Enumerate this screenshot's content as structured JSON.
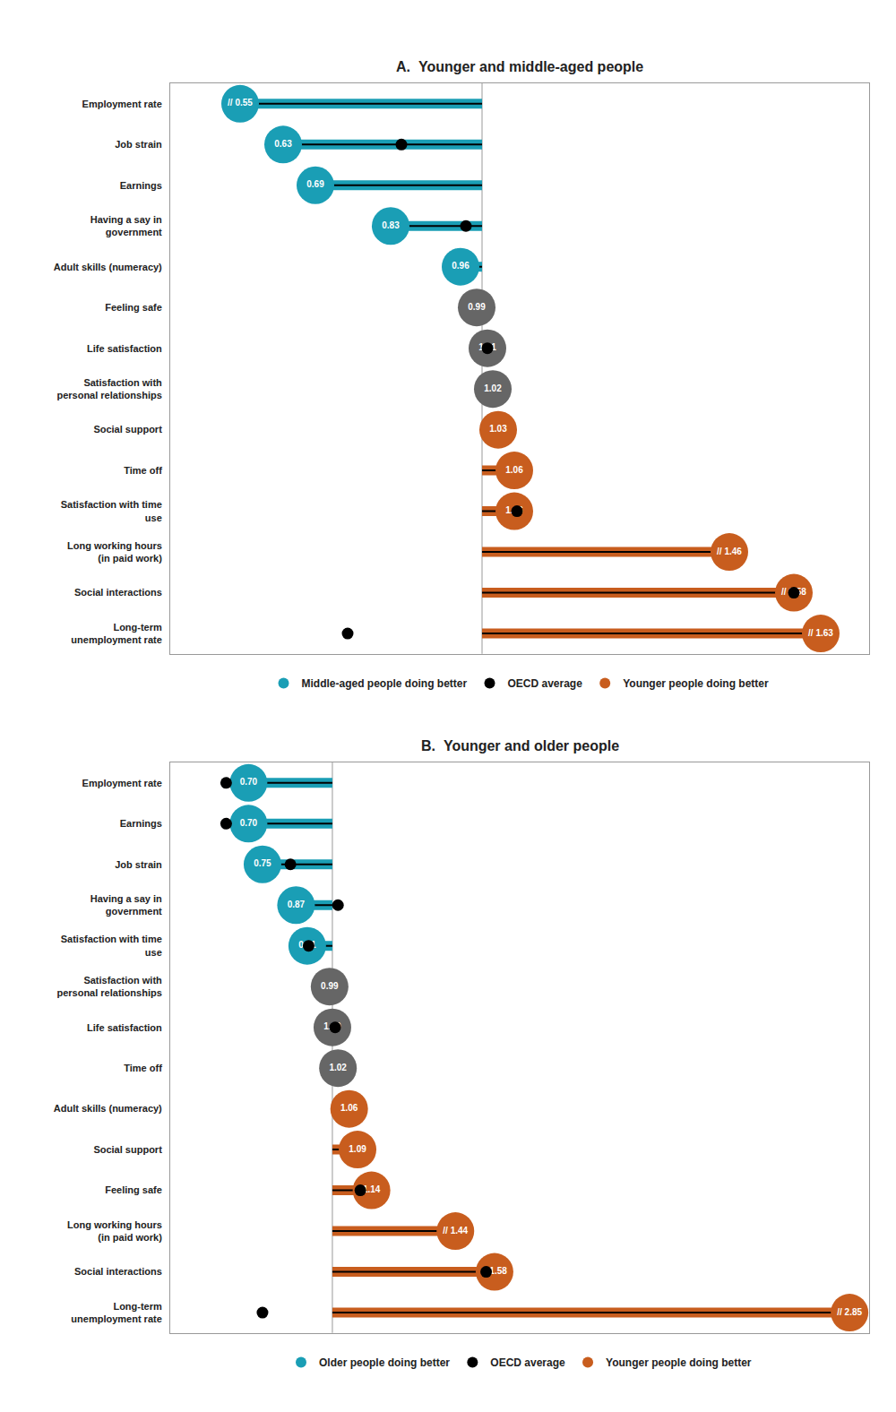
{
  "chart_data": [
    {
      "type": "lollipop",
      "title": "A.  Younger and middle-aged people",
      "orientation": "horizontal",
      "categories": [
        "Employment rate",
        "Job strain",
        "Earnings",
        "Having a say in\ngovernment",
        "Adult skills (numeracy)",
        "Feeling safe",
        "Life satisfaction",
        "Satisfaction with\npersonal relationships",
        "Social support",
        "Time off",
        "Satisfaction with time\nuse",
        "Long working hours\n(in paid work)",
        "Social interactions",
        "Long-term\nunemployment rate"
      ],
      "baseline": 1.0,
      "xlim": [
        0.42,
        1.72
      ],
      "tick_labels": "y",
      "grid": false,
      "data_labels": true,
      "legend": "bottom",
      "series": [
        {
          "name": "Middle-aged people doing better",
          "type": "lollipop",
          "color": "#1a9eb5",
          "values": [
            0.55,
            0.63,
            0.69,
            0.83,
            0.96,
            null,
            null,
            null,
            null,
            null,
            null,
            null,
            null,
            null
          ],
          "value_labels": [
            "// 0.55",
            "0.63",
            "0.69",
            "0.83",
            "0.96",
            null,
            null,
            null,
            null,
            null,
            null,
            null,
            null,
            null
          ]
        },
        {
          "name": "OECD average",
          "type": "scatter",
          "marker": "circle",
          "color": "#000000",
          "values": [
            null,
            0.85,
            null,
            0.97,
            null,
            null,
            1.01,
            null,
            null,
            null,
            1.065,
            null,
            1.58,
            0.75
          ]
        },
        {
          "name": "Younger people doing better",
          "type": "lollipop",
          "color": "#c85d1e",
          "values": [
            null,
            null,
            null,
            null,
            null,
            null,
            null,
            null,
            1.03,
            1.06,
            1.06,
            1.46,
            1.58,
            1.63
          ],
          "value_labels": [
            null,
            null,
            null,
            null,
            null,
            null,
            null,
            null,
            "1.03",
            "1.06",
            "1.06",
            "// 1.46",
            "// 1.58",
            "// 1.63"
          ]
        },
        {
          "type": "lollipop",
          "color": "#666666",
          "values": [
            null,
            null,
            null,
            null,
            null,
            0.99,
            1.01,
            1.02,
            null,
            null,
            null,
            null,
            null,
            null
          ],
          "value_labels": [
            null,
            null,
            null,
            null,
            null,
            "0.99",
            "1.01",
            "1.02",
            null,
            null,
            null,
            null,
            null,
            null
          ]
        }
      ]
    },
    {
      "type": "lollipop",
      "title": "B.  Younger and older people",
      "orientation": "horizontal",
      "categories": [
        "Employment rate",
        "Earnings",
        "Job strain",
        "Having a say in\ngovernment",
        "Satisfaction with time\nuse",
        "Satisfaction with\npersonal relationships",
        "Life satisfaction",
        "Time off",
        "Adult skills (numeracy)",
        "Social support",
        "Feeling safe",
        "Long working hours\n(in paid work)",
        "Social interactions",
        "Long-term\nunemployment rate"
      ],
      "baseline": 1.0,
      "xlim": [
        0.42,
        2.92
      ],
      "tick_labels": "y",
      "grid": false,
      "data_labels": true,
      "legend": "bottom",
      "series": [
        {
          "name": "Older people doing better",
          "type": "lollipop",
          "color": "#1a9eb5",
          "values": [
            0.7,
            0.7,
            0.75,
            0.87,
            0.91,
            null,
            null,
            null,
            null,
            null,
            null,
            null,
            null,
            null
          ],
          "value_labels": [
            "0.70",
            "0.70",
            "0.75",
            "0.87",
            "0.91",
            null,
            null,
            null,
            null,
            null,
            null,
            null,
            null,
            null
          ]
        },
        {
          "name": "OECD average",
          "type": "scatter",
          "marker": "circle",
          "color": "#000000",
          "values": [
            0.62,
            0.62,
            0.85,
            1.02,
            0.915,
            null,
            1.01,
            null,
            null,
            null,
            1.1,
            null,
            1.55,
            0.75
          ]
        },
        {
          "name": "Younger people doing better",
          "type": "lollipop",
          "color": "#c85d1e",
          "values": [
            null,
            null,
            null,
            null,
            null,
            null,
            null,
            null,
            1.06,
            1.09,
            1.14,
            1.44,
            1.58,
            2.85
          ],
          "value_labels": [
            null,
            null,
            null,
            null,
            null,
            null,
            null,
            null,
            "1.06",
            "1.09",
            "1.14",
            "// 1.44",
            "// 1.58",
            "// 2.85"
          ]
        },
        {
          "type": "lollipop",
          "color": "#666666",
          "values": [
            null,
            null,
            null,
            null,
            null,
            0.99,
            1.0,
            1.02,
            null,
            null,
            null,
            null,
            null,
            null
          ],
          "value_labels": [
            null,
            null,
            null,
            null,
            null,
            "0.99",
            "1.00",
            "1.02",
            null,
            null,
            null,
            null,
            null,
            null
          ]
        }
      ]
    }
  ]
}
